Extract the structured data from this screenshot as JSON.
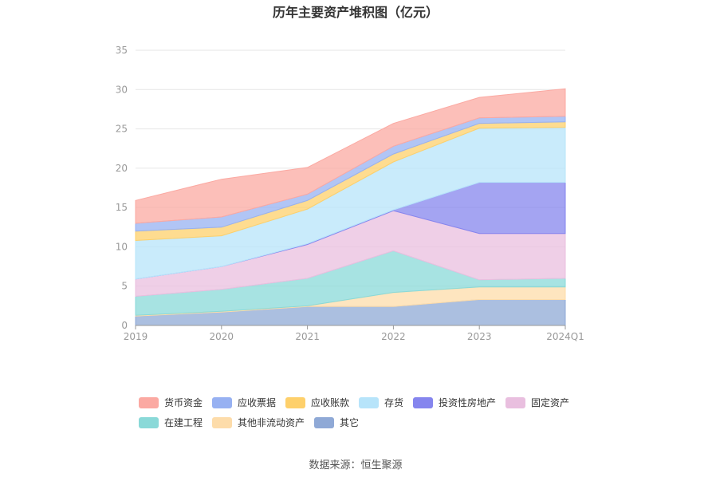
{
  "chart_data": {
    "type": "area",
    "stacked": true,
    "title": "历年主要资产堆积图（亿元）",
    "xlabel": "",
    "ylabel": "",
    "categories": [
      "2019",
      "2020",
      "2021",
      "2022",
      "2023",
      "2024Q1"
    ],
    "ylim": [
      0,
      35
    ],
    "yticks": [
      0,
      5,
      10,
      15,
      20,
      25,
      30,
      35
    ],
    "grid": true,
    "legend_position": "bottom",
    "series": [
      {
        "name": "其它",
        "color": "#8fa9d6",
        "values": [
          1.2,
          1.7,
          2.4,
          2.4,
          3.3,
          3.3
        ]
      },
      {
        "name": "其他非流动资产",
        "color": "#fddcaa",
        "values": [
          0.1,
          0.1,
          0.1,
          1.8,
          1.6,
          1.6
        ]
      },
      {
        "name": "在建工程",
        "color": "#8ad9d8",
        "values": [
          2.4,
          2.8,
          3.5,
          5.3,
          0.9,
          1.1
        ]
      },
      {
        "name": "固定资产",
        "color": "#e9bfdf",
        "values": [
          2.2,
          2.9,
          4.3,
          5.1,
          5.9,
          5.7
        ]
      },
      {
        "name": "投资性房地产",
        "color": "#8585ee",
        "values": [
          0.0,
          0.0,
          0.1,
          0.1,
          6.5,
          6.5
        ]
      },
      {
        "name": "存货",
        "color": "#b7e4fa",
        "values": [
          4.9,
          3.9,
          4.4,
          6.1,
          6.9,
          7.0
        ]
      },
      {
        "name": "应收账款",
        "color": "#fed06b",
        "values": [
          1.2,
          1.1,
          1.1,
          1.0,
          0.6,
          0.7
        ]
      },
      {
        "name": "应收票据",
        "color": "#97b1f2",
        "values": [
          1.0,
          1.3,
          0.8,
          1.0,
          0.7,
          0.7
        ]
      },
      {
        "name": "货币资金",
        "color": "#fba9a2",
        "values": [
          2.9,
          4.8,
          3.4,
          2.9,
          2.6,
          3.5
        ]
      }
    ]
  },
  "legend_order": [
    "货币资金",
    "应收票据",
    "应收账款",
    "存货",
    "投资性房地产",
    "固定资产",
    "在建工程",
    "其他非流动资产",
    "其它"
  ],
  "source_text": "数据来源：恒生聚源"
}
